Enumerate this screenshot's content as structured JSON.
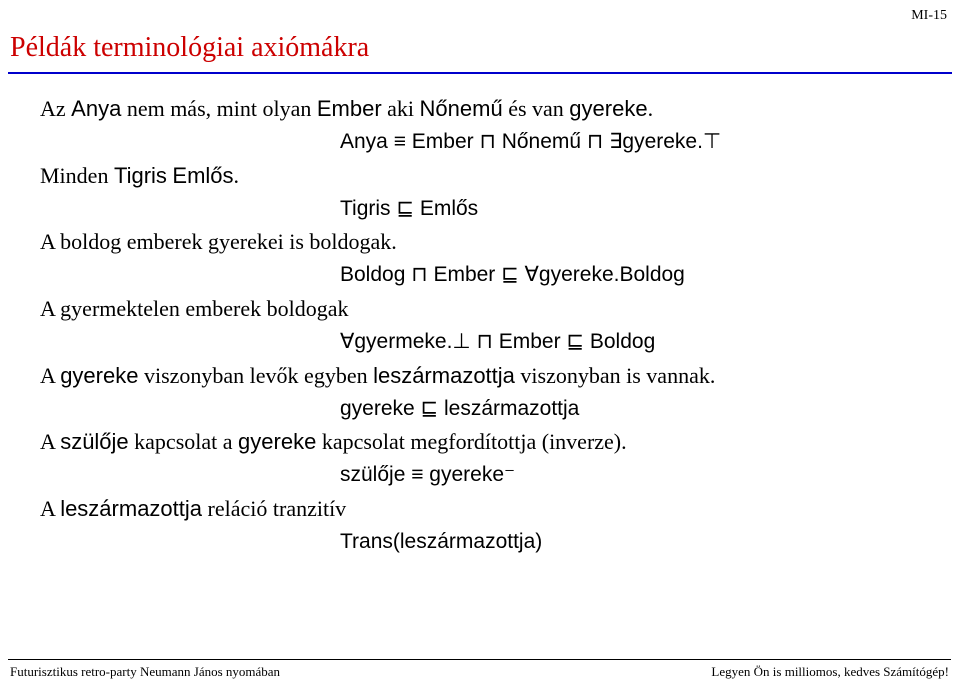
{
  "page_number": "MI-15",
  "title": "Példák terminológiai axiómákra",
  "colors": {
    "title": "#cc0000",
    "rule": "#0000cc",
    "text": "#000000",
    "background": "#ffffff"
  },
  "axioms": [
    {
      "text_parts": [
        "Az ",
        "Anya",
        " nem más, mint olyan ",
        "Ember",
        " aki ",
        "Nőnemű",
        " és van ",
        "gyereke",
        "."
      ],
      "sans_indices": [
        1,
        3,
        5,
        7
      ],
      "formula": "Anya ≡ Ember ⊓ Nőnemű ⊓ ∃gyereke.⊤"
    },
    {
      "text_parts": [
        "Minden ",
        "Tigris",
        " ",
        "Emlős",
        "."
      ],
      "sans_indices": [
        1,
        3
      ],
      "formula": "Tigris ⊑ Emlős"
    },
    {
      "text_parts": [
        "A boldog emberek gyerekei is boldogak."
      ],
      "sans_indices": [],
      "formula": "Boldog ⊓ Ember ⊑ ∀gyereke.Boldog"
    },
    {
      "text_parts": [
        "A gyermektelen emberek boldogak"
      ],
      "sans_indices": [],
      "formula": "∀gyermeke.⊥ ⊓ Ember ⊑ Boldog"
    },
    {
      "text_parts": [
        "A ",
        "gyereke",
        " viszonyban levők egyben ",
        "leszármazottja",
        " viszonyban is vannak."
      ],
      "sans_indices": [
        1,
        3
      ],
      "formula": "gyereke ⊑ leszármazottja"
    },
    {
      "text_parts": [
        "A ",
        "szülője",
        " kapcsolat a ",
        "gyereke",
        " kapcsolat megfordítottja (inverze)."
      ],
      "sans_indices": [
        1,
        3
      ],
      "formula": "szülője ≡ gyereke⁻"
    },
    {
      "text_parts": [
        "A ",
        "leszármazottja",
        " reláció tranzitív"
      ],
      "sans_indices": [
        1
      ],
      "formula": "Trans(leszármazottja)"
    }
  ],
  "footer": {
    "left": "Futurisztikus retro-party Neumann János nyomában",
    "right": "Legyen Ön is milliomos, kedves Számítógép!"
  }
}
